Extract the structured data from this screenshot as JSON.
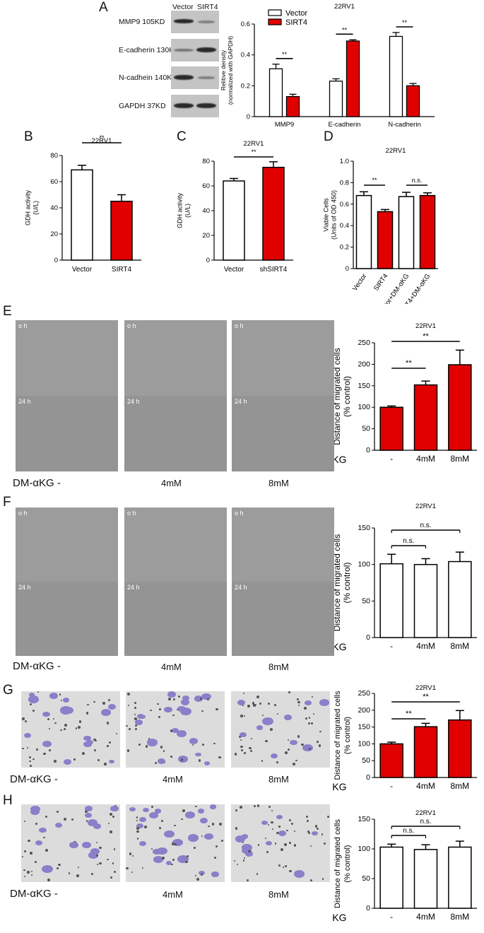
{
  "panels": {
    "A": "A",
    "B": "B",
    "C": "C",
    "D": "D",
    "E": "E",
    "F": "F",
    "G": "G",
    "H": "H"
  },
  "panel_a": {
    "lane_labels": [
      "Vector",
      "SIRT4"
    ],
    "blots": [
      "MMP9  105KD",
      "E-cadherin 130KD",
      "N-cadhein  140KD",
      "GAPDH  37KD"
    ]
  },
  "micrographs": {
    "time_labels": [
      "o h",
      "24 h"
    ],
    "treatment_prefix": "DM-αKG -",
    "doses": [
      "4mM",
      "8mM"
    ]
  },
  "colors": {
    "sirt4": "#e00000",
    "vector": "#ffffff"
  },
  "chart_data": [
    {
      "id": "A",
      "type": "bar",
      "title": "22RV1",
      "categories": [
        "MMP9",
        "E-cadherin",
        "N-cadherin"
      ],
      "ylabel": "Relitive density\n(normalized with GAPDH)",
      "ylim": [
        0,
        0.6
      ],
      "yticks": [
        0,
        0.2,
        0.4,
        0.6
      ],
      "series": [
        {
          "name": "Vector",
          "values": [
            0.31,
            0.23,
            0.52
          ],
          "errors": [
            0.03,
            0.015,
            0.025
          ]
        },
        {
          "name": "SIRT4",
          "values": [
            0.13,
            0.49,
            0.2
          ],
          "errors": [
            0.015,
            0.008,
            0.015
          ]
        }
      ],
      "annotations": [
        "**",
        "**",
        "**"
      ],
      "legend": "top-left"
    },
    {
      "id": "B",
      "type": "bar",
      "title": "22RV1",
      "categories": [
        "Vector",
        "SIRT4"
      ],
      "values": [
        69,
        45
      ],
      "errors": [
        3.5,
        5
      ],
      "ylabel": "GDH activity\n(U/L)",
      "ylim": [
        0,
        80
      ],
      "yticks": [
        0,
        20,
        40,
        60,
        80
      ],
      "annotations": [
        "**"
      ]
    },
    {
      "id": "C",
      "type": "bar",
      "title": "22RV1",
      "categories": [
        "Vector",
        "shSIRT4"
      ],
      "values": [
        64,
        75
      ],
      "errors": [
        2,
        4.5
      ],
      "ylabel": "GDH activity\n(U/L)",
      "ylim": [
        0,
        80
      ],
      "yticks": [
        0,
        20,
        40,
        60,
        80
      ],
      "annotations": [
        "**"
      ]
    },
    {
      "id": "D",
      "type": "bar",
      "title": "22RV1",
      "categories": [
        "Vector",
        "SIRT4",
        "Vector+DM-αKG",
        "SIRT4+DM-αKG"
      ],
      "values": [
        0.68,
        0.53,
        0.67,
        0.68
      ],
      "errors": [
        0.035,
        0.02,
        0.04,
        0.025
      ],
      "ylabel": "Viable Cells\n(Units of OD 450)",
      "ylim": [
        0,
        1.0
      ],
      "yticks": [
        0,
        0.2,
        0.4,
        0.6,
        0.8,
        1.0
      ],
      "annotations": [
        "**",
        "n.s."
      ]
    },
    {
      "id": "E",
      "type": "bar",
      "title": "22RV1",
      "categories": [
        "-",
        "4mM",
        "8mM"
      ],
      "values": [
        100,
        152,
        199
      ],
      "errors": [
        3,
        9,
        34
      ],
      "xlabel": "DM- α KG",
      "ylabel": "Distance of migrated cells\n(% control)",
      "ylim": [
        0,
        250
      ],
      "yticks": [
        0,
        50,
        100,
        150,
        200,
        250
      ],
      "annotations": [
        "**",
        "**"
      ]
    },
    {
      "id": "F",
      "type": "bar",
      "title": "22RV1",
      "categories": [
        "-",
        "4mM",
        "8mM"
      ],
      "values": [
        101,
        100,
        104
      ],
      "errors": [
        13,
        8,
        13
      ],
      "xlabel": "DM- α KG",
      "ylabel": "Distance of migrated cells\n(% control)",
      "ylim": [
        0,
        150
      ],
      "yticks": [
        0,
        50,
        100,
        150
      ],
      "annotations": [
        "n.s.",
        "n.s."
      ]
    },
    {
      "id": "G",
      "type": "bar",
      "title": "22RV1",
      "categories": [
        "-",
        "4mM",
        "8mM"
      ],
      "values": [
        100,
        151,
        171
      ],
      "errors": [
        5,
        10,
        28
      ],
      "xlabel": "DM- α KG",
      "ylabel": "Distance of migrated cells\n(% control)",
      "ylim": [
        0,
        250
      ],
      "yticks": [
        0,
        50,
        100,
        150,
        200,
        250
      ],
      "annotations": [
        "**",
        "**"
      ]
    },
    {
      "id": "H",
      "type": "bar",
      "title": "22RV1",
      "categories": [
        "-",
        "4mM",
        "8mM"
      ],
      "values": [
        103,
        99,
        103
      ],
      "errors": [
        5,
        8,
        10
      ],
      "xlabel": "DM- α KG",
      "ylabel": "Distance of migrated cells\n(% control)",
      "ylim": [
        0,
        150
      ],
      "yticks": [
        0,
        50,
        100,
        150
      ],
      "annotations": [
        "n.s.",
        "n.s."
      ]
    }
  ]
}
